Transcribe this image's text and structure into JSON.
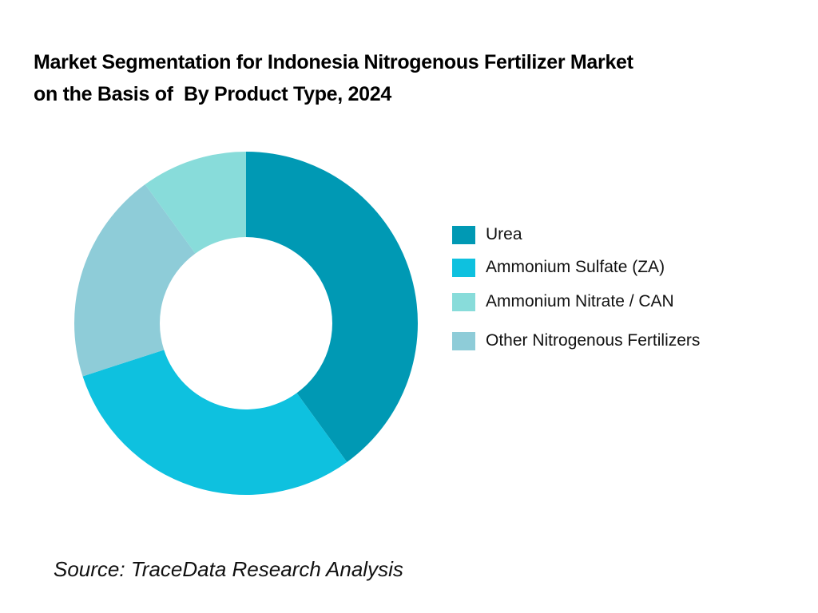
{
  "title": {
    "line1": "Market Segmentation for Indonesia Nitrogenous Fertilizer Market",
    "line2": "on the Basis of  By Product Type, 2024"
  },
  "source": "Source: TraceData Research Analysis",
  "chart_data": {
    "type": "pie",
    "subtype": "donut",
    "title": "Market Segmentation for Indonesia Nitrogenous Fertilizer Market on the Basis of By Product Type, 2024",
    "unit": "%",
    "categories": [
      "Urea",
      "Ammonium Sulfate (ZA)",
      "Other Nitrogenous Fertilizers",
      "Ammonium Nitrate / CAN"
    ],
    "values": [
      40,
      30,
      20,
      10
    ],
    "colors": [
      "#0099B4",
      "#0EC1DF",
      "#8ECCD8",
      "#88DCDA"
    ],
    "start_angle": "12 o'clock",
    "direction": "clockwise",
    "legend_position": "right",
    "legend": [
      {
        "label": "Urea",
        "color": "#0099B4"
      },
      {
        "label": "Ammonium Sulfate (ZA)",
        "color": "#0EC1DF"
      },
      {
        "label": "Ammonium Nitrate / CAN",
        "color": "#88DCDA"
      },
      {
        "label": "Other Nitrogenous Fertilizers",
        "color": "#8ECCD8"
      }
    ]
  }
}
